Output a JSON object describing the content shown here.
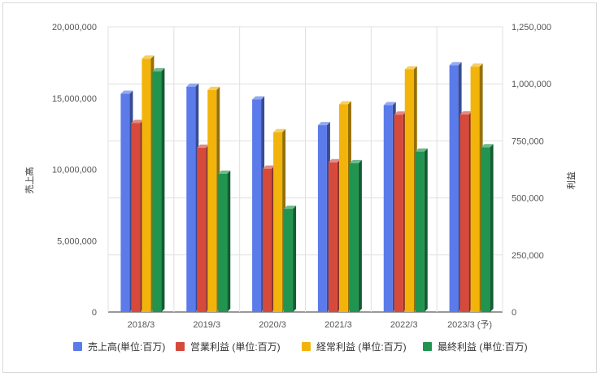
{
  "chart_data": {
    "type": "bar",
    "categories": [
      "2018/3",
      "2019/3",
      "2020/3",
      "2021/3",
      "2022/3",
      "2023/3 (予)"
    ],
    "series": [
      {
        "name": "売上高(単位:百万)",
        "axis": "left",
        "color": "#5b7bea",
        "values": [
          15300000,
          15800000,
          14900000,
          13100000,
          14500000,
          17300000
        ]
      },
      {
        "name": "営業利益 (単位:百万)",
        "axis": "right",
        "color": "#d64a3c",
        "values": [
          828000,
          720000,
          628000,
          656000,
          865000,
          866000
        ]
      },
      {
        "name": "経常利益 (単位:百万)",
        "axis": "right",
        "color": "#f2b40a",
        "values": [
          1110000,
          973000,
          788000,
          910000,
          1063000,
          1075000
        ]
      },
      {
        "name": "最終利益 (単位:百万)",
        "axis": "right",
        "color": "#21944f",
        "values": [
          1055000,
          606000,
          452000,
          652000,
          703000,
          722000
        ]
      }
    ],
    "ylabel": "売上高",
    "y2label": "利益",
    "ylim": [
      0,
      20000000
    ],
    "y2lim": [
      0,
      1250000
    ],
    "yticks": [
      "0",
      "5,000,000",
      "10,000,000",
      "15,000,000",
      "20,000,000"
    ],
    "y2ticks": [
      "0",
      "250,000",
      "500,000",
      "750,000",
      "1,000,000",
      "1,250,000"
    ],
    "grid": true,
    "legend_position": "bottom"
  }
}
